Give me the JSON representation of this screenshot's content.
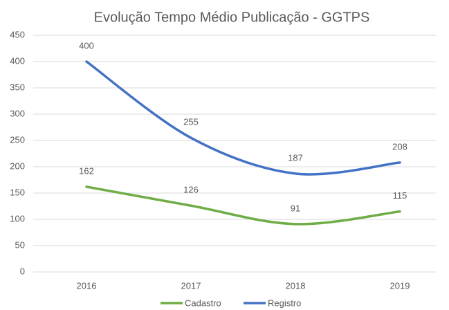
{
  "chart_data": {
    "type": "line",
    "title": "Evolução Tempo Médio Publicação - GGTPS",
    "categories": [
      "2016",
      "2017",
      "2018",
      "2019"
    ],
    "series": [
      {
        "name": "Cadastro",
        "color": "#70ad47",
        "values": [
          162,
          126,
          91,
          115
        ]
      },
      {
        "name": "Registro",
        "color": "#4472c4",
        "values": [
          400,
          255,
          187,
          208
        ]
      }
    ],
    "ylim": [
      0,
      450
    ],
    "yticks": [
      0,
      50,
      100,
      150,
      200,
      250,
      300,
      350,
      400,
      450
    ],
    "grid": true,
    "smooth": true,
    "legend": "bottom"
  }
}
